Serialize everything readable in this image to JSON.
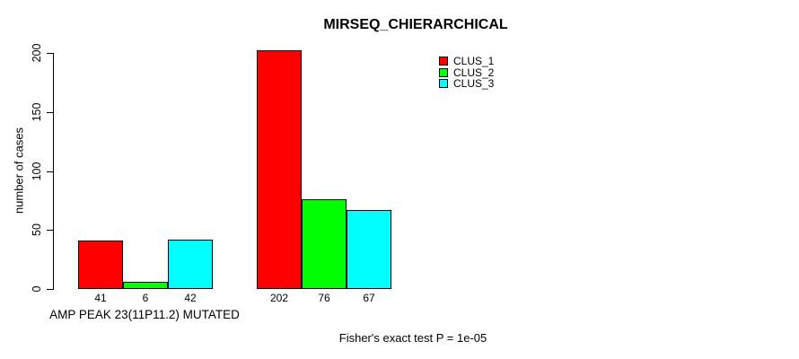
{
  "chart_data": {
    "type": "bar",
    "title": "MIRSEQ_CHIERARCHICAL",
    "ylabel": "number of cases",
    "xlabel": "AMP PEAK 23(11P11.2) MUTATED",
    "footer": "Fisher's exact test P = 1e-05",
    "ylim": [
      0,
      200
    ],
    "yticks": [
      0,
      50,
      100,
      150,
      200
    ],
    "grid": false,
    "legend_position": "top-right",
    "categories": [
      "AMP PEAK 23(11P11.2) MUTATED",
      ""
    ],
    "series": [
      {
        "name": "CLUS_1",
        "color": "#ff0000",
        "values": [
          41,
          202
        ]
      },
      {
        "name": "CLUS_2",
        "color": "#00ff00",
        "values": [
          6,
          76
        ]
      },
      {
        "name": "CLUS_3",
        "color": "#00ffff",
        "values": [
          42,
          67
        ]
      }
    ]
  }
}
